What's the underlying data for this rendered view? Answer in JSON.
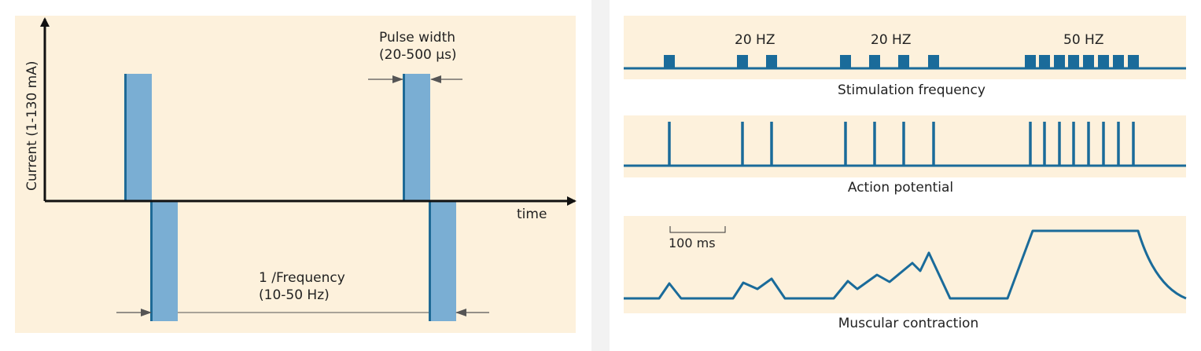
{
  "left_diagram": {
    "y_axis_label": "Current  (1-130 mA)",
    "x_axis_label": "time",
    "pulse_width_label": "Pulse width",
    "pulse_width_range": "(20-500 µs)",
    "period_label": "1 /Frequency",
    "period_range": "(10-50 Hz)"
  },
  "right_diagram": {
    "freq_label_1": "20 HZ",
    "freq_label_2": "20 HZ",
    "freq_label_3": "50 HZ",
    "stimulation_title": "Stimulation frequency",
    "action_title": "Action potential",
    "scale_label": "100 ms",
    "contraction_title": "Muscular contraction"
  },
  "colors": {
    "background": "#fdf1dc",
    "pulse_fill": "#7aaed3",
    "pulse_edge": "#1e6a96",
    "trace": "#1a6b9a",
    "axis": "#111111"
  }
}
